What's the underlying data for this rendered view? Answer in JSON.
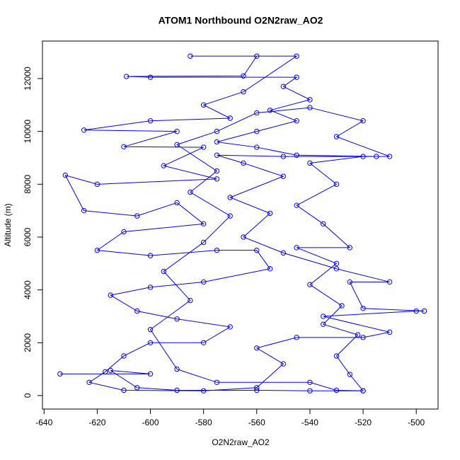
{
  "chart_data": {
    "type": "line",
    "title": "ATOM1 Northbound O2N2raw_AO2",
    "x_label": "O2N2raw_AO2",
    "y_label": "Altitude (m)",
    "color": "#0000ff",
    "markers": true,
    "xlim": [
      -640.6,
      -491.8
    ],
    "ylim": [
      -510,
      13420
    ],
    "xticks": [
      -640,
      -620,
      -600,
      -580,
      -560,
      -540,
      -520,
      -500
    ],
    "yticks": [
      0,
      2000,
      4000,
      6000,
      8000,
      10000,
      12000
    ],
    "series": [
      {
        "name": "O2N2raw_AO2",
        "color": "#0000ff",
        "x": [
          -634,
          -600,
          -615,
          -605,
          -590,
          -560,
          -540,
          -520,
          -525,
          -530,
          -522,
          -535,
          -528,
          -540,
          -530,
          -545,
          -525,
          -535,
          -545,
          -530,
          -540,
          -520,
          -515,
          -545,
          -560,
          -575,
          -560,
          -545,
          -555,
          -540,
          -550,
          -545,
          -600,
          -609,
          -565,
          -560,
          -585,
          -545,
          -565,
          -580,
          -570,
          -600,
          -625,
          -590,
          -610,
          -580,
          -595,
          -575,
          -620,
          -632,
          -625,
          -605,
          -590,
          -580,
          -610,
          -620,
          -600,
          -575,
          -560,
          -555,
          -580,
          -600,
          -615,
          -605,
          -590,
          -570,
          -580,
          -600,
          -610,
          -617,
          -623,
          -610,
          -580,
          -560,
          -550,
          -560,
          -545,
          -520,
          -510,
          -535,
          -500,
          -497,
          -520,
          -525,
          -510,
          -530,
          -550,
          -565,
          -555,
          -570,
          -550,
          -565,
          -575,
          -550,
          -510,
          -530,
          -520,
          -540,
          -560,
          -575,
          -590,
          -575,
          -585,
          -570,
          -580,
          -595,
          -585,
          -600,
          -590,
          -575,
          -540,
          -530,
          -520
        ],
        "values": [
          820,
          820,
          950,
          300,
          200,
          200,
          180,
          180,
          800,
          1500,
          2300,
          2700,
          3400,
          4200,
          5000,
          5600,
          5600,
          6500,
          7200,
          8000,
          8800,
          9050,
          9050,
          9100,
          9400,
          9600,
          10000,
          10400,
          10800,
          11200,
          11700,
          12050,
          12050,
          12080,
          12100,
          12850,
          12850,
          12850,
          11500,
          11000,
          10500,
          10400,
          10050,
          10000,
          9420,
          9400,
          8700,
          8200,
          8000,
          8340,
          7000,
          6800,
          7300,
          6500,
          6200,
          5500,
          5300,
          5500,
          5500,
          4800,
          4300,
          4100,
          3800,
          3200,
          2900,
          2600,
          2000,
          2000,
          1500,
          900,
          500,
          200,
          180,
          300,
          1200,
          1800,
          2200,
          2200,
          2400,
          3000,
          3200,
          3200,
          3300,
          4300,
          4300,
          4800,
          5400,
          6000,
          6900,
          7500,
          8300,
          8800,
          9100,
          9050,
          9050,
          9800,
          10400,
          10900,
          10700,
          10000,
          9500,
          8500,
          7700,
          6800,
          5800,
          4700,
          3600,
          2500,
          1000,
          500,
          500,
          200,
          180
        ]
      }
    ]
  }
}
